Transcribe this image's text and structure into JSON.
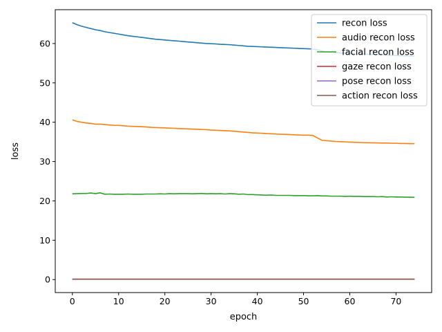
{
  "chart_data": {
    "type": "line",
    "xlabel": "epoch",
    "ylabel": "loss",
    "xlim": [
      -3.7,
      77.7
    ],
    "ylim": [
      -3.3,
      68.6
    ],
    "xticks": [
      0,
      10,
      20,
      30,
      40,
      50,
      60,
      70
    ],
    "yticks": [
      0,
      10,
      20,
      30,
      40,
      50,
      60
    ],
    "grid": false,
    "legend_position": "top-right",
    "x_start": 0,
    "x_end": 74,
    "series": [
      {
        "name": "recon loss",
        "color": "#1f77b4",
        "values": [
          65.3,
          64.8,
          64.4,
          64.1,
          63.8,
          63.5,
          63.3,
          63.0,
          62.8,
          62.6,
          62.4,
          62.2,
          62.0,
          61.85,
          61.7,
          61.55,
          61.4,
          61.25,
          61.1,
          61.0,
          60.9,
          60.8,
          60.7,
          60.6,
          60.5,
          60.4,
          60.3,
          60.2,
          60.1,
          60.0,
          59.95,
          59.9,
          59.8,
          59.75,
          59.7,
          59.6,
          59.5,
          59.4,
          59.3,
          59.25,
          59.2,
          59.15,
          59.1,
          59.05,
          59.0,
          58.95,
          58.9,
          58.85,
          58.8,
          58.75,
          58.7,
          58.65,
          58.6,
          58.4,
          58.1,
          57.9,
          57.8,
          57.7,
          57.6,
          57.5,
          57.45,
          57.4,
          57.35,
          57.3,
          57.25,
          57.2,
          57.15,
          57.1,
          57.05,
          57.0,
          56.95,
          56.9,
          56.85,
          56.8,
          56.8
        ]
      },
      {
        "name": "audio recon loss",
        "color": "#ff7f0e",
        "values": [
          40.6,
          40.2,
          40.0,
          39.8,
          39.7,
          39.5,
          39.5,
          39.4,
          39.3,
          39.2,
          39.2,
          39.1,
          39.0,
          38.95,
          38.9,
          38.85,
          38.8,
          38.7,
          38.65,
          38.6,
          38.55,
          38.5,
          38.45,
          38.4,
          38.35,
          38.3,
          38.25,
          38.2,
          38.15,
          38.1,
          38.0,
          37.95,
          37.9,
          37.85,
          37.8,
          37.7,
          37.6,
          37.5,
          37.4,
          37.3,
          37.25,
          37.2,
          37.1,
          37.05,
          37.0,
          36.95,
          36.9,
          36.85,
          36.8,
          36.75,
          36.7,
          36.7,
          36.65,
          36.0,
          35.4,
          35.3,
          35.2,
          35.1,
          35.05,
          35.0,
          34.95,
          34.9,
          34.85,
          34.8,
          34.8,
          34.75,
          34.75,
          34.7,
          34.7,
          34.65,
          34.65,
          34.6,
          34.6,
          34.55,
          34.55
        ]
      },
      {
        "name": "facial recon loss",
        "color": "#2ca02c",
        "values": [
          21.8,
          21.85,
          21.9,
          21.9,
          22.0,
          21.85,
          22.05,
          21.7,
          21.75,
          21.7,
          21.7,
          21.7,
          21.75,
          21.7,
          21.7,
          21.7,
          21.75,
          21.75,
          21.75,
          21.8,
          21.75,
          21.85,
          21.8,
          21.85,
          21.85,
          21.85,
          21.8,
          21.85,
          21.9,
          21.8,
          21.85,
          21.8,
          21.85,
          21.75,
          21.85,
          21.8,
          21.7,
          21.75,
          21.6,
          21.6,
          21.55,
          21.5,
          21.45,
          21.5,
          21.4,
          21.4,
          21.4,
          21.4,
          21.35,
          21.35,
          21.35,
          21.3,
          21.3,
          21.35,
          21.25,
          21.25,
          21.2,
          21.2,
          21.2,
          21.15,
          21.2,
          21.15,
          21.15,
          21.1,
          21.1,
          21.1,
          21.05,
          21.1,
          21.0,
          21.05,
          21.0,
          21.0,
          20.95,
          20.95,
          20.9
        ]
      },
      {
        "name": "gaze recon loss",
        "color": "#d62728",
        "constant": 0.1
      },
      {
        "name": "pose recon loss",
        "color": "#9467bd",
        "constant": 0.1
      },
      {
        "name": "action recon loss",
        "color": "#8c564b",
        "constant": 0.1
      }
    ]
  }
}
